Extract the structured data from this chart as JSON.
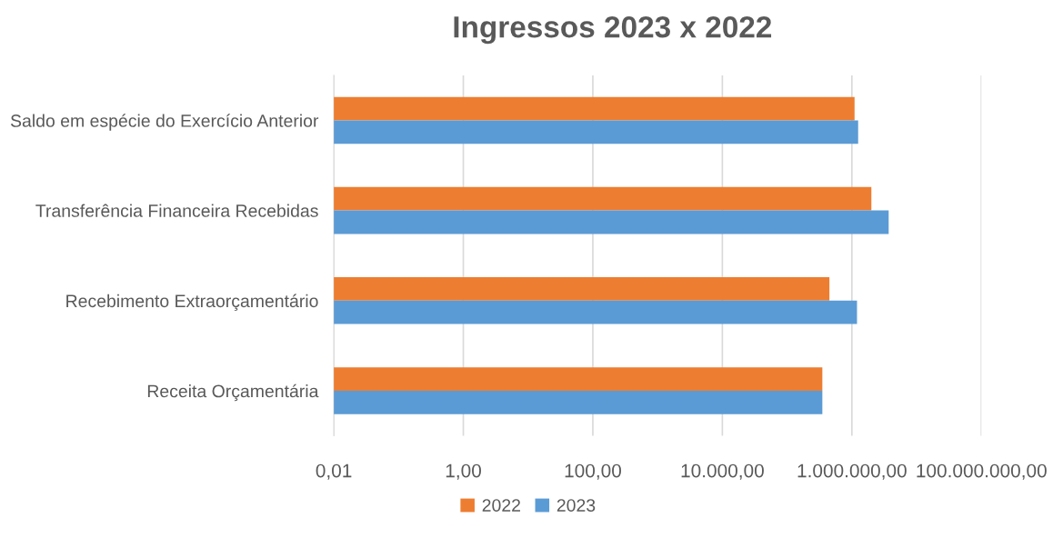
{
  "chart_data": {
    "type": "bar",
    "orientation": "horizontal",
    "title": "Ingressos 2023 x 2022",
    "categories": [
      "Saldo em espécie do Exercício Anterior",
      "Transferência Financeira Recebidas",
      "Recebimento Extraorçamentário",
      "Receita Orçamentária"
    ],
    "series": [
      {
        "name": "2022",
        "color": "#ed7d31",
        "values": [
          1100000,
          2000000,
          450000,
          350000
        ]
      },
      {
        "name": "2023",
        "color": "#5b9bd5",
        "values": [
          1250000,
          3700000,
          1200000,
          350000
        ]
      }
    ],
    "log": "x",
    "xlim": [
      0.01,
      100000000
    ],
    "xticks": [
      {
        "value": 0.01,
        "label": "0,01"
      },
      {
        "value": 1,
        "label": "1,00"
      },
      {
        "value": 100,
        "label": "100,00"
      },
      {
        "value": 10000,
        "label": "10.000,00"
      },
      {
        "value": 1000000,
        "label": "1.000.000,00"
      },
      {
        "value": 100000000,
        "label": "100.000.000,00"
      }
    ],
    "grid": "x",
    "legend": "bottom"
  }
}
